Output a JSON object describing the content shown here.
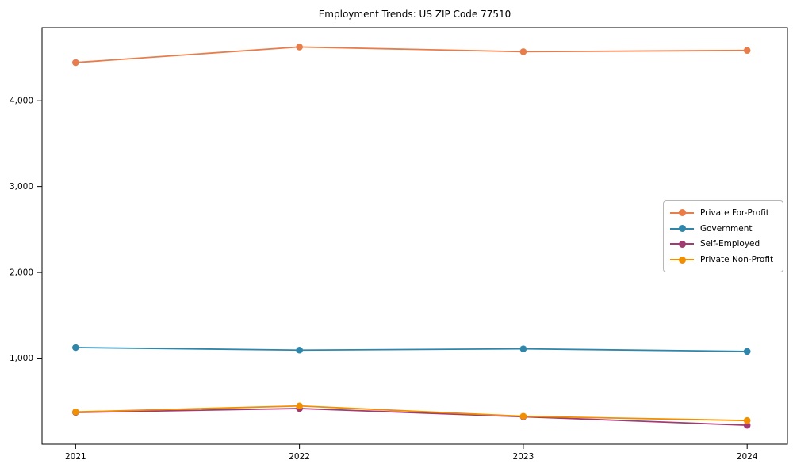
{
  "chart_data": {
    "type": "line",
    "title": "Employment Trends: US ZIP Code 77510",
    "xlabel": "",
    "ylabel": "",
    "x": [
      2021,
      2022,
      2023,
      2024
    ],
    "x_tick_labels": [
      "2021",
      "2022",
      "2023",
      "2024"
    ],
    "y_ticks": [
      {
        "value": 1000,
        "label": "1,000"
      },
      {
        "value": 2000,
        "label": "2,000"
      },
      {
        "value": 3000,
        "label": "3,000"
      },
      {
        "value": 4000,
        "label": "4,000"
      }
    ],
    "xlim": [
      2020.85,
      2024.18
    ],
    "ylim": [
      0,
      4850
    ],
    "grid": false,
    "marker": "o",
    "legend_position": "center right",
    "series": [
      {
        "name": "Private For-Profit",
        "color": "#E87D4C",
        "values": [
          4445,
          4625,
          4570,
          4585
        ]
      },
      {
        "name": "Government",
        "color": "#2E86AB",
        "values": [
          1125,
          1095,
          1110,
          1080
        ]
      },
      {
        "name": "Self-Employed",
        "color": "#A23B72",
        "values": [
          370,
          415,
          320,
          220
        ]
      },
      {
        "name": "Private Non-Profit",
        "color": "#F18F01",
        "values": [
          375,
          445,
          325,
          275
        ]
      }
    ]
  }
}
